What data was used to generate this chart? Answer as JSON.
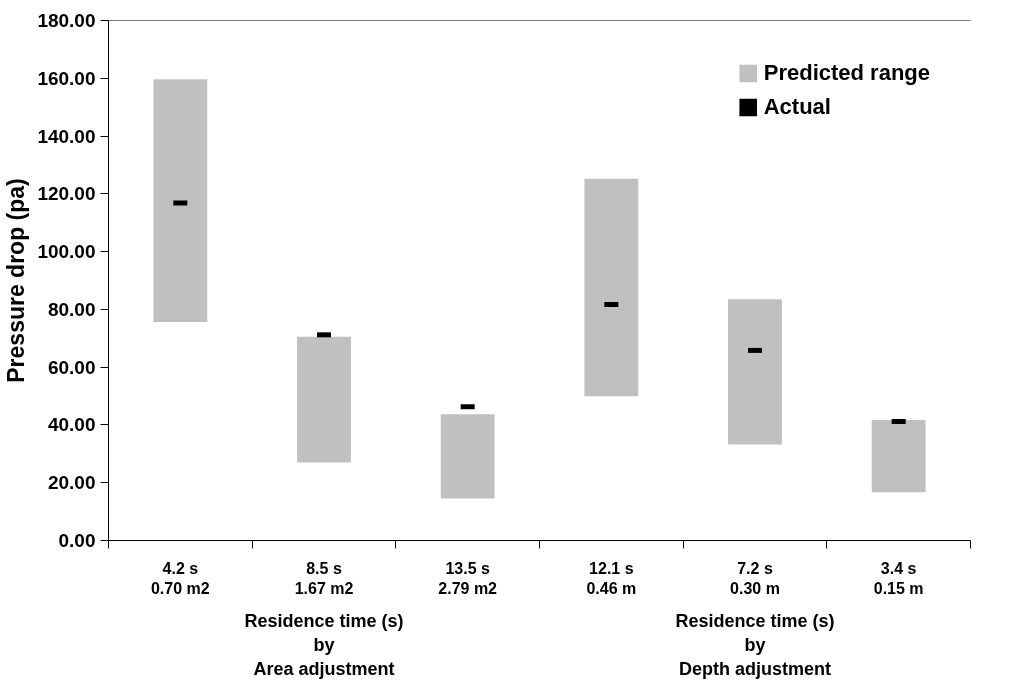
{
  "chart_data": {
    "type": "bar",
    "ylabel": "Pressure drop (pa)",
    "categories": [
      "4.2 s\n0.70 m2",
      "8.5 s\n1.67 m2",
      "13.5 s\n2.79 m2",
      "12.1 s\n0.46 m",
      "7.2 s\n0.30 m",
      "3.4 s\n0.15 m"
    ],
    "series": [
      {
        "name": "Predicted range",
        "color": "#c0c0c0",
        "base": [
          75.6,
          27.0,
          14.5,
          49.9,
          33.2,
          16.7
        ],
        "values": [
          84.1,
          43.5,
          29.2,
          75.3,
          50.3,
          25.0
        ]
      },
      {
        "name": "Actual",
        "type": "scatter",
        "color": "#000000",
        "x": [
          "4.2 s\n0.70 m2",
          "8.5 s\n1.67 m2",
          "13.5 s\n2.79 m2",
          "12.1 s\n0.46 m",
          "7.2 s\n0.30 m",
          "3.4 s\n0.15 m"
        ],
        "values": [
          116.8,
          71.2,
          46.3,
          81.7,
          65.8,
          41.2
        ]
      }
    ],
    "annotations": [
      "Residence time (s)\nby\nArea adjustment",
      "Residence time (s)\nby\nDepth adjustment"
    ],
    "ylim": [
      0,
      180
    ],
    "yticks": [
      {
        "value": 0,
        "label": "0.00"
      },
      {
        "value": 20,
        "label": "20.00"
      },
      {
        "value": 40,
        "label": "40.00"
      },
      {
        "value": 60,
        "label": "60.00"
      },
      {
        "value": 80,
        "label": "80.00"
      },
      {
        "value": 100,
        "label": "100.00"
      },
      {
        "value": 120,
        "label": "120.00"
      },
      {
        "value": 140,
        "label": "140.00"
      },
      {
        "value": 160,
        "label": "160.00"
      },
      {
        "value": 180,
        "label": "180.00"
      }
    ],
    "grid": false,
    "legend": "top right"
  }
}
